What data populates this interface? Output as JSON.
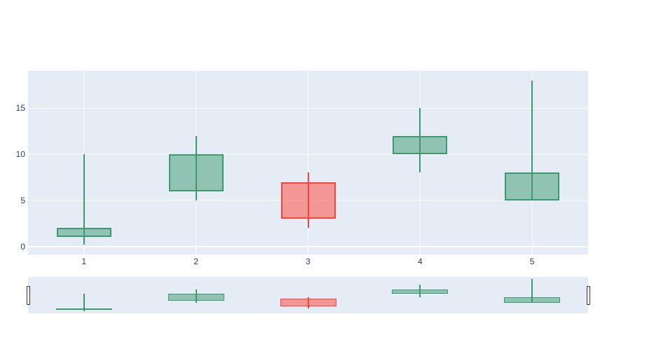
{
  "figure": {
    "title": "",
    "background_color": "#FFFFFF"
  },
  "chart_data": {
    "type": "candlestick",
    "x": [
      1,
      2,
      3,
      4,
      5
    ],
    "open": [
      1,
      6,
      7,
      10,
      5
    ],
    "high": [
      10,
      12,
      8,
      15,
      18
    ],
    "low": [
      0.2,
      5,
      2,
      8,
      5
    ],
    "close": [
      2,
      10,
      3,
      12,
      8
    ],
    "directions": [
      "increasing",
      "increasing",
      "decreasing",
      "increasing",
      "increasing"
    ],
    "x_tick_labels": [
      "1",
      "2",
      "3",
      "4",
      "5"
    ],
    "x_tick_values": [
      1,
      2,
      3,
      4,
      5
    ],
    "y_tick_labels": [
      "0",
      "5",
      "10",
      "15"
    ],
    "y_tick_values": [
      0,
      5,
      10,
      15
    ],
    "x_range": [
      0.5,
      5.5
    ],
    "y_range": [
      -0.87,
      19.07
    ],
    "grid": true,
    "legend": "none",
    "rangeslider_visible": true
  },
  "colors": {
    "plot_background": "#E5ECF6",
    "gridline": "#FFFFFF",
    "tick_label": "#2A3F5F",
    "increasing_line": "#3D9970",
    "increasing_fill": "rgba(61,153,112,0.5)",
    "increasing_fill_hex": "#91C2B3",
    "decreasing_line": "#FF4136",
    "decreasing_fill": "rgba(255,65,54,0.5)",
    "decreasing_fill_hex": "#F29696",
    "rangeslider_handle_fill": "#FFFFFF",
    "rangeslider_handle_border": "#333333"
  }
}
